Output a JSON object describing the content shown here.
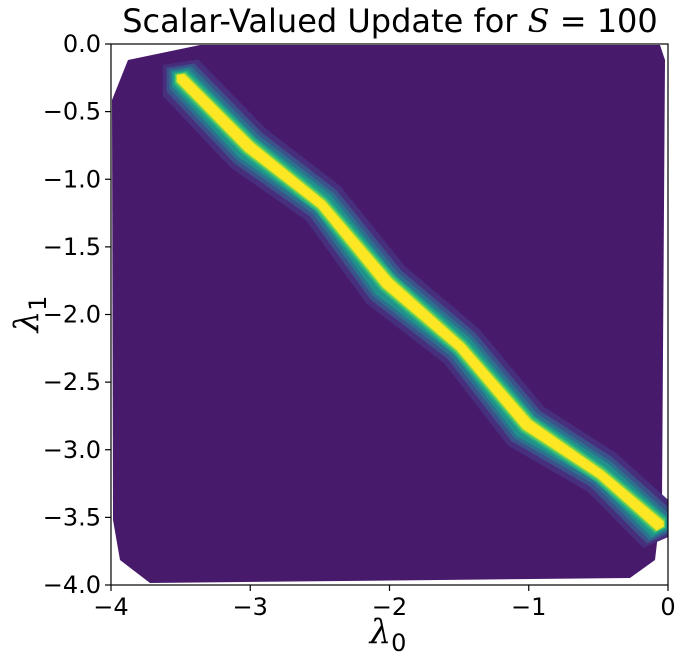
{
  "chart_data": {
    "type": "contour",
    "title": {
      "prefix": "Scalar-Valued Update for ",
      "math_var": "S",
      "math_rest": " = 100"
    },
    "xlabel": {
      "symbol": "λ",
      "subscript": "0"
    },
    "ylabel": {
      "symbol": "λ",
      "subscript": "1"
    },
    "xlim": [
      -4,
      0
    ],
    "ylim": [
      -4,
      0
    ],
    "x_ticks": [
      -4,
      -3,
      -2,
      -1,
      0
    ],
    "x_tick_labels": [
      "−4",
      "−3",
      "−2",
      "−1",
      "0"
    ],
    "y_ticks": [
      0.0,
      -0.5,
      -1.0,
      -1.5,
      -2.0,
      -2.5,
      -3.0,
      -3.5,
      -4.0
    ],
    "y_tick_labels": [
      "0.0",
      "−0.5",
      "−1.0",
      "−1.5",
      "−2.0",
      "−2.5",
      "−3.0",
      "−3.5",
      "−4.0"
    ],
    "colormap": "viridis",
    "background_color": "#481a6c",
    "ridge": {
      "description_points": [
        {
          "x": -3.5,
          "y": -0.25
        },
        {
          "x": -3.0,
          "y": -0.75
        },
        {
          "x": -2.5,
          "y": -1.2
        },
        {
          "x": -2.0,
          "y": -1.75
        },
        {
          "x": -1.5,
          "y": -2.25
        },
        {
          "x": -1.0,
          "y": -2.8
        },
        {
          "x": -0.5,
          "y": -3.2
        },
        {
          "x": -0.05,
          "y": -3.55
        }
      ]
    },
    "levels": [
      {
        "color": "#472f7d",
        "width_data": 0.3
      },
      {
        "color": "#3b528b",
        "width_data": 0.22
      },
      {
        "color": "#2c728e",
        "width_data": 0.16
      },
      {
        "color": "#21918c",
        "width_data": 0.11
      },
      {
        "color": "#27ad81",
        "width_data": 0.075
      },
      {
        "color": "#5ec962",
        "width_data": 0.045
      },
      {
        "color": "#aadc32",
        "width_data": 0.022
      },
      {
        "color": "#fde725",
        "width_data": 0.008
      }
    ],
    "grid": false
  }
}
